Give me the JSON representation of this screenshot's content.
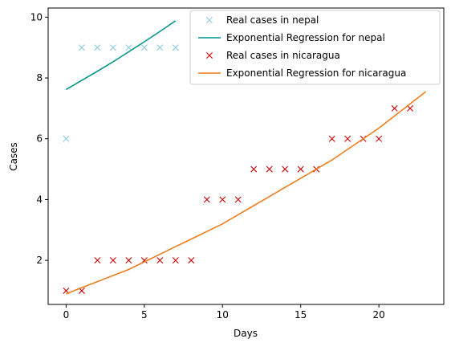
{
  "chart_data": {
    "type": "scatter",
    "title": "",
    "xlabel": "Days",
    "ylabel": "Cases",
    "xlim": [
      -1.15,
      24.15
    ],
    "ylim": [
      0.55,
      10.3
    ],
    "xticks": [
      0,
      5,
      10,
      15,
      20
    ],
    "yticks": [
      2,
      4,
      6,
      8,
      10
    ],
    "grid": false,
    "legend_position": "top-right",
    "series": [
      {
        "name": "Real cases in nepal",
        "kind": "points",
        "marker": "x",
        "color": "#8ecae6",
        "x": [
          0,
          1,
          2,
          3,
          4,
          5,
          6,
          7
        ],
        "y": [
          6,
          9,
          9,
          9,
          9,
          9,
          9,
          9
        ]
      },
      {
        "name": "Exponential Regression for nepal",
        "kind": "line",
        "color": "#009688",
        "x": [
          0,
          1,
          2,
          3,
          4,
          5,
          6,
          7
        ],
        "y": [
          7.62,
          7.92,
          8.22,
          8.53,
          8.86,
          9.19,
          9.53,
          9.88
        ]
      },
      {
        "name": "Real cases in nicaragua",
        "kind": "points",
        "marker": "x",
        "color": "#d00000",
        "x": [
          0,
          1,
          2,
          3,
          4,
          5,
          6,
          7,
          8,
          9,
          10,
          11,
          12,
          13,
          14,
          15,
          16,
          17,
          18,
          19,
          20,
          21,
          22
        ],
        "y": [
          1,
          1,
          2,
          2,
          2,
          2,
          2,
          2,
          2,
          4,
          4,
          4,
          5,
          5,
          5,
          5,
          5,
          6,
          6,
          6,
          6,
          7,
          7
        ]
      },
      {
        "name": "Exponential Regression for nicaragua",
        "kind": "line",
        "color": "#f07d1b",
        "x": [
          0,
          1,
          2,
          3,
          4,
          5,
          6,
          7,
          8,
          9,
          10,
          11,
          12,
          13,
          14,
          15,
          16,
          17,
          18,
          19,
          20,
          21,
          22,
          23
        ],
        "y": [
          0.9,
          1.1,
          1.3,
          1.5,
          1.7,
          1.95,
          2.2,
          2.45,
          2.7,
          2.95,
          3.2,
          3.5,
          3.8,
          4.1,
          4.4,
          4.7,
          5.0,
          5.3,
          5.65,
          6.0,
          6.35,
          6.75,
          7.15,
          7.55
        ]
      }
    ]
  }
}
